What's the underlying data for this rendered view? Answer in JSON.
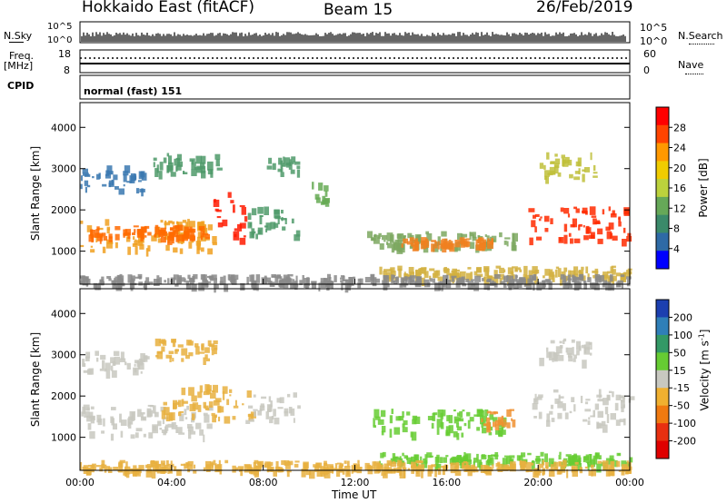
{
  "header": {
    "station": "Hokkaido East (fitACF)",
    "beam": "Beam 15",
    "date": "26/Feb/2019"
  },
  "top_panels": {
    "nsky_label": "N.Sky",
    "nsky_top": "10^5",
    "nsky_bottom": "10^0",
    "nsearch_label": "N.Search",
    "nsearch_top": "10^5",
    "nsearch_bottom": "10^0",
    "freq_label_1": "Freq.",
    "freq_label_2": "[MHz]",
    "freq_top": "18",
    "freq_bottom": "8",
    "nave_label": "Nave",
    "nave_top": "60",
    "nave_bottom": "0",
    "cpid_label": "CPID",
    "cpid_value": "normal (fast) 151"
  },
  "colorbar_power": {
    "label": "Power [dB]",
    "ticks": [
      "28",
      "24",
      "20",
      "16",
      "12",
      "8",
      "4"
    ],
    "colors": [
      "#ff0000",
      "#ff4400",
      "#ff9900",
      "#f0cc00",
      "#bcd23c",
      "#66a858",
      "#3b8a6a",
      "#2e6aa6",
      "#0000ff"
    ]
  },
  "colorbar_velocity": {
    "label": "Velocity [m s",
    "label_sup": "-1",
    "label_end": "]",
    "ticks": [
      "200",
      "100",
      "50",
      "15",
      "-15",
      "-50",
      "-100",
      "-200"
    ],
    "colors": [
      "#1c3fb0",
      "#2f7fb8",
      "#339966",
      "#66cc33",
      "#c8c8c0",
      "#f0b030",
      "#f07a10",
      "#e83010",
      "#e00000"
    ]
  },
  "chart_data": [
    {
      "type": "heatmap",
      "name": "power",
      "ylabel": "Slant Range [km]",
      "xlabel": "Time UT",
      "x_ticks": [
        "00:00",
        "04:00",
        "08:00",
        "12:00",
        "16:00",
        "20:00",
        "00:00"
      ],
      "y_ticks": [
        1000,
        2000,
        3000,
        4000
      ],
      "ylim": [
        200,
        4600
      ],
      "xlim_hours": [
        0,
        24
      ],
      "regions": [
        {
          "t0": 0.0,
          "t1": 5.8,
          "r0": 1050,
          "r1": 1800,
          "c": "#f0a020"
        },
        {
          "t0": 0.2,
          "t1": 5.5,
          "r0": 1350,
          "r1": 1650,
          "c": "#ff6a00"
        },
        {
          "t0": 5.8,
          "t1": 7.2,
          "r0": 1300,
          "r1": 2450,
          "c": "#ff1a00"
        },
        {
          "t0": 7.2,
          "t1": 9.5,
          "r0": 1400,
          "r1": 2100,
          "c": "#4f9a6a"
        },
        {
          "t0": 0.0,
          "t1": 2.8,
          "r0": 2500,
          "r1": 3100,
          "c": "#3a78b0"
        },
        {
          "t0": 3.2,
          "t1": 6.0,
          "r0": 2900,
          "r1": 3400,
          "c": "#4f9a6a"
        },
        {
          "t0": 8.0,
          "t1": 9.5,
          "r0": 2900,
          "r1": 3300,
          "c": "#4f9a6a"
        },
        {
          "t0": 10.0,
          "t1": 10.8,
          "r0": 2200,
          "r1": 2700,
          "c": "#66aa55"
        },
        {
          "t0": 12.5,
          "t1": 19.0,
          "r0": 1100,
          "r1": 1500,
          "c": "#7da860"
        },
        {
          "t0": 14.0,
          "t1": 18.0,
          "r0": 1150,
          "r1": 1350,
          "c": "#f08020"
        },
        {
          "t0": 13.0,
          "t1": 24.0,
          "r0": 350,
          "r1": 650,
          "c": "#d2b040"
        },
        {
          "t0": 19.5,
          "t1": 24.0,
          "r0": 1300,
          "r1": 2100,
          "c": "#ff2a00"
        },
        {
          "t0": 20.0,
          "t1": 22.5,
          "r0": 2800,
          "r1": 3400,
          "c": "#bfc03a"
        },
        {
          "t0": 0.0,
          "t1": 24.0,
          "r0": 200,
          "r1": 450,
          "c": "#8a8a8a"
        }
      ]
    },
    {
      "type": "heatmap",
      "name": "velocity",
      "ylabel": "Slant Range [km]",
      "xlabel": "Time UT",
      "x_ticks": [
        "00:00",
        "04:00",
        "08:00",
        "12:00",
        "16:00",
        "20:00",
        "00:00"
      ],
      "y_ticks": [
        1000,
        2000,
        3000,
        4000
      ],
      "ylim": [
        200,
        4600
      ],
      "xlim_hours": [
        0,
        24
      ],
      "regions": [
        {
          "t0": 0.0,
          "t1": 5.8,
          "r0": 1050,
          "r1": 1800,
          "c": "#c8c8c0"
        },
        {
          "t0": 3.5,
          "t1": 7.5,
          "r0": 1500,
          "r1": 2300,
          "c": "#e8b040"
        },
        {
          "t0": 7.2,
          "t1": 9.5,
          "r0": 1400,
          "r1": 2100,
          "c": "#c8c8c0"
        },
        {
          "t0": 0.0,
          "t1": 2.8,
          "r0": 2600,
          "r1": 3100,
          "c": "#c8c8c0"
        },
        {
          "t0": 3.2,
          "t1": 6.0,
          "r0": 2900,
          "r1": 3400,
          "c": "#e8b040"
        },
        {
          "t0": 12.5,
          "t1": 18.5,
          "r0": 1100,
          "r1": 1700,
          "c": "#66cc33"
        },
        {
          "t0": 17.5,
          "t1": 19.0,
          "r0": 1300,
          "r1": 1700,
          "c": "#f09030"
        },
        {
          "t0": 19.5,
          "t1": 24.0,
          "r0": 1300,
          "r1": 2200,
          "c": "#c8c8c0"
        },
        {
          "t0": 20.0,
          "t1": 22.5,
          "r0": 2800,
          "r1": 3400,
          "c": "#c8c8c0"
        },
        {
          "t0": 13.0,
          "t1": 24.0,
          "r0": 350,
          "r1": 650,
          "c": "#66cc33"
        },
        {
          "t0": 0.0,
          "t1": 24.0,
          "r0": 200,
          "r1": 450,
          "c": "#e8b040"
        }
      ]
    }
  ],
  "time_axis_label": "Time UT"
}
